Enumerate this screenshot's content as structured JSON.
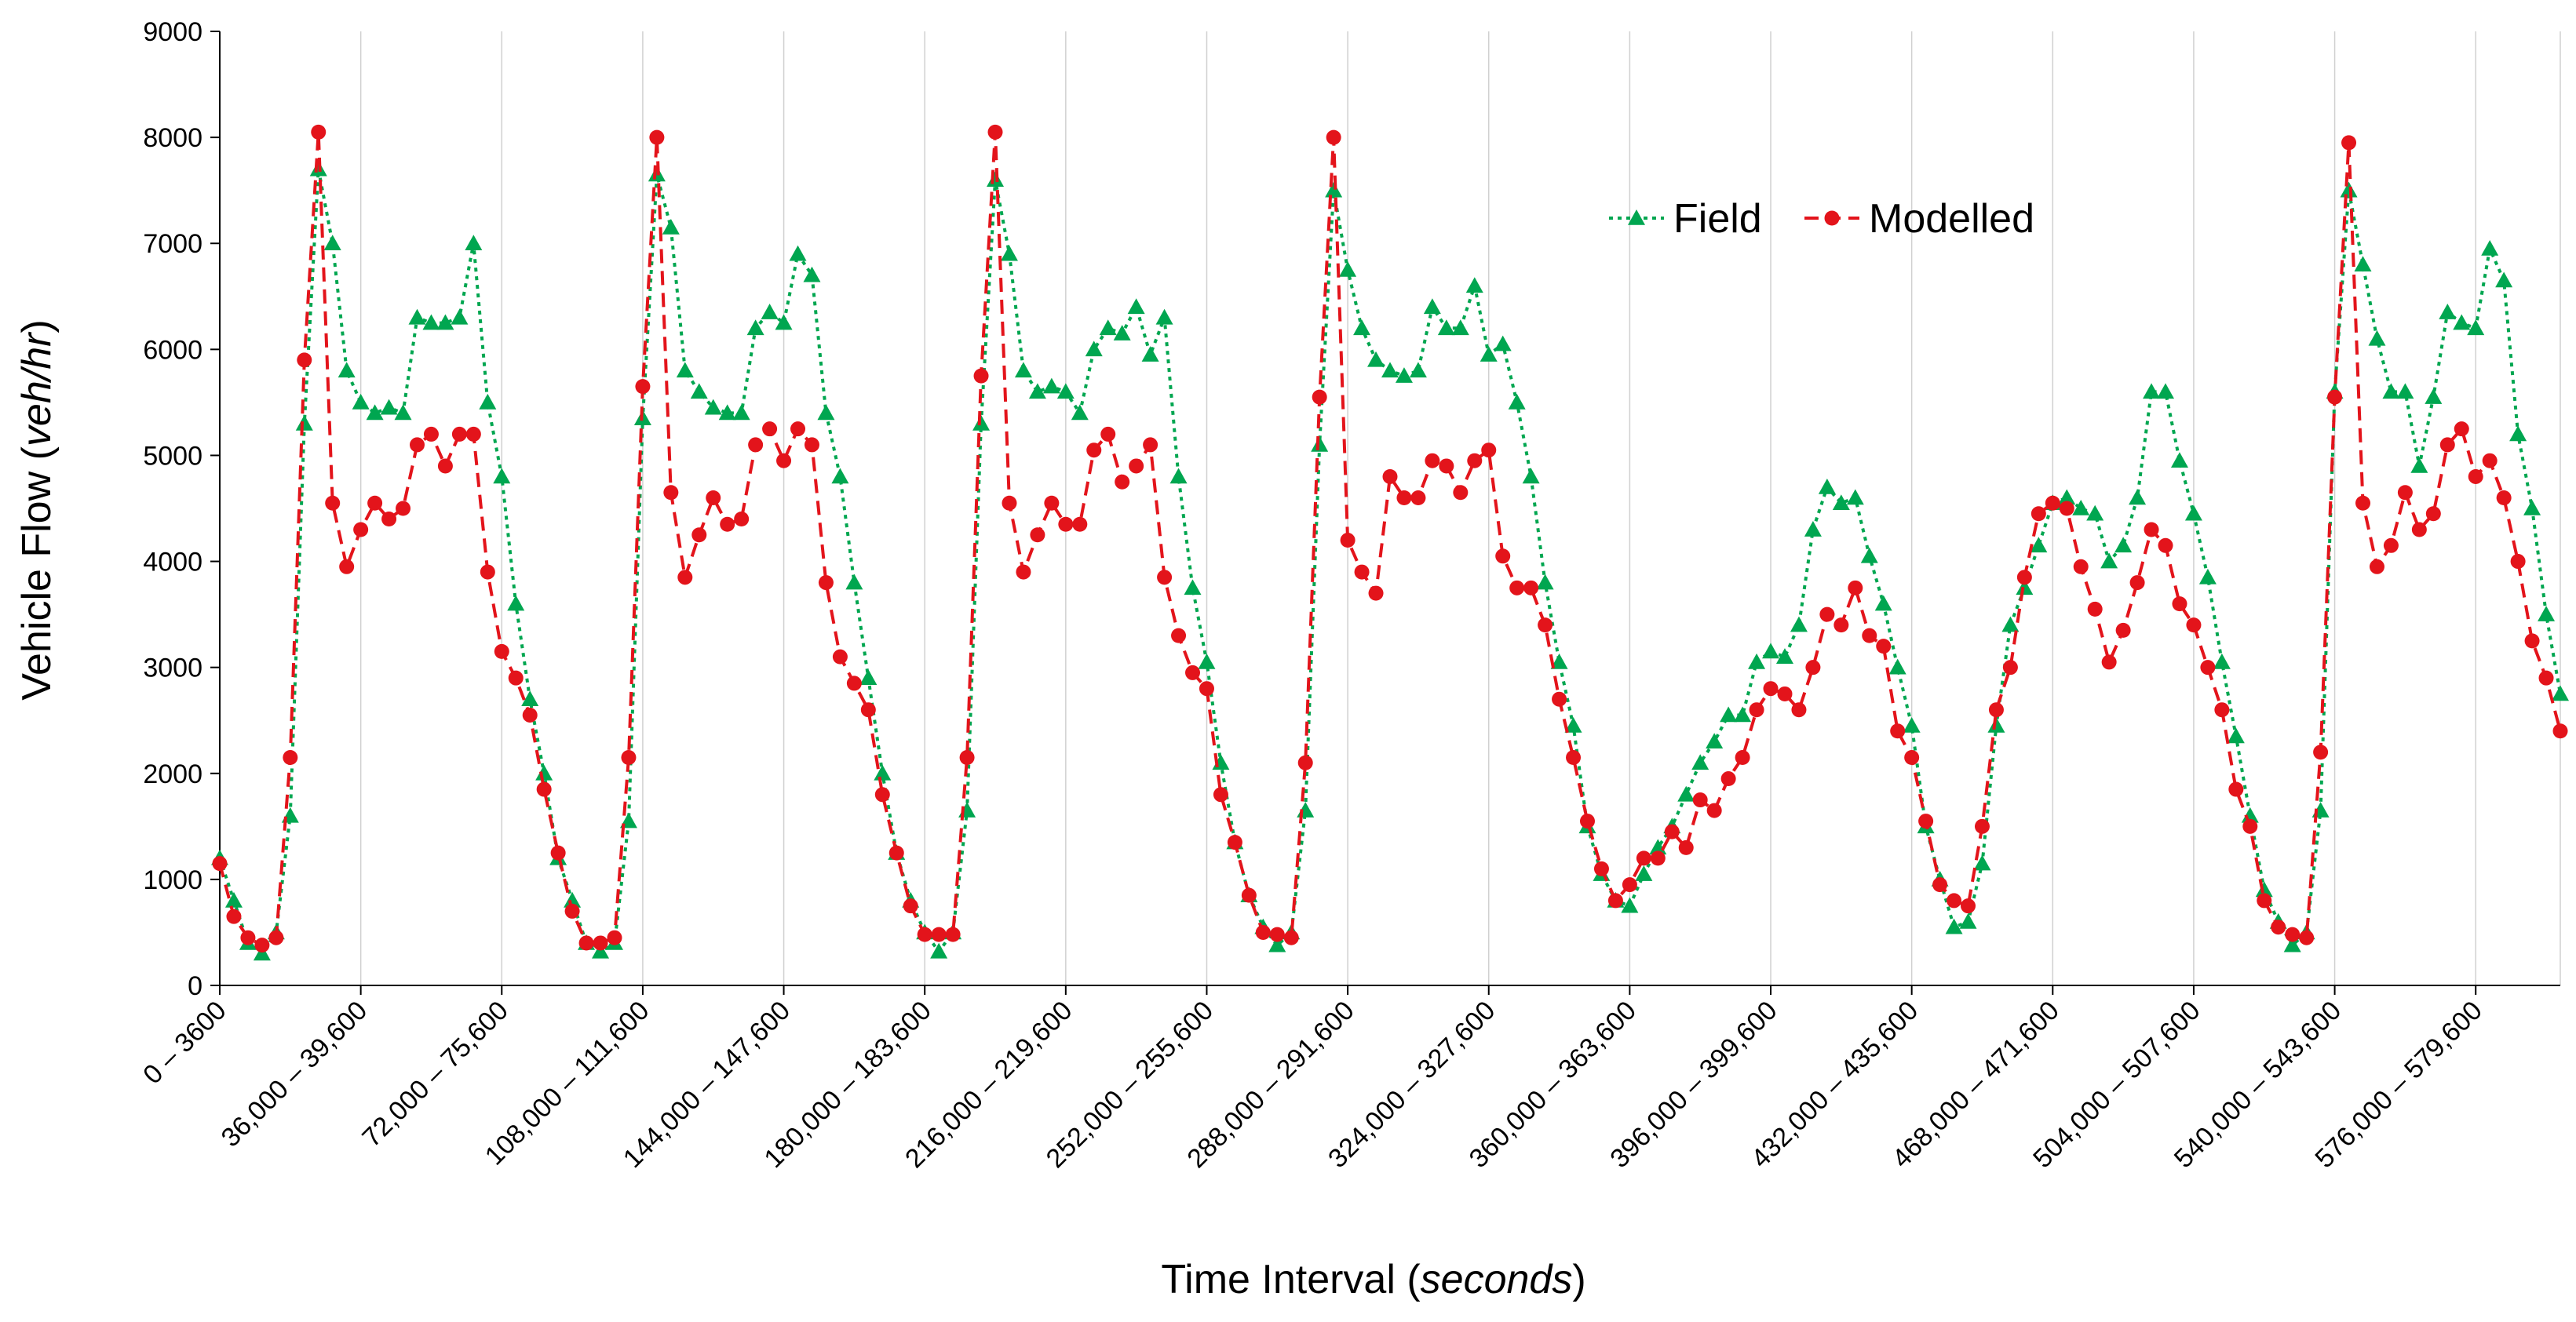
{
  "chart_data": {
    "type": "line",
    "title": "",
    "xlabel": "Time Interval",
    "xlabel_unit": "seconds",
    "ylabel": "Vehicle Flow",
    "ylabel_unit": "veh/hr",
    "ylim": [
      0,
      9000
    ],
    "y_ticks": [
      "0",
      "1000",
      "2000",
      "3000",
      "4000",
      "5000",
      "6000",
      "7000",
      "8000",
      "9000"
    ],
    "x_tick_labels": [
      "0 – 3600",
      "36,000 – 39,600",
      "72,000 – 75,600",
      "108,000 – 111,600",
      "144,000 – 147,600",
      "180,000 – 183,600",
      "216,000 – 219,600",
      "252,000 – 255,600",
      "288,000 – 291,600",
      "324,000 – 327,600",
      "360,000 – 363,600",
      "396,000 – 399,600",
      "432,000 – 435,600",
      "468,000 – 471,600",
      "504,000 – 507,600",
      "540,000 – 543,600",
      "576,000 – 579,600"
    ],
    "grid": "vertical",
    "legend": "top-right",
    "series": [
      {
        "name": "Field",
        "color": "#00a650",
        "marker": "triangle",
        "line": "dotted",
        "values": [
          1200,
          800,
          400,
          300,
          500,
          1600,
          5300,
          7700,
          7000,
          5800,
          5500,
          5400,
          5450,
          5400,
          6300,
          6250,
          6250,
          6300,
          7000,
          5500,
          4800,
          3600,
          2700,
          2000,
          1200,
          800,
          400,
          320,
          400,
          1550,
          5350,
          7650,
          7150,
          5800,
          5600,
          5450,
          5400,
          5400,
          6200,
          6350,
          6250,
          6900,
          6700,
          5400,
          4800,
          3800,
          2900,
          2000,
          1250,
          800,
          500,
          320,
          500,
          1650,
          5300,
          7600,
          6900,
          5800,
          5600,
          5650,
          5600,
          5400,
          6000,
          6200,
          6150,
          6400,
          5950,
          6300,
          4800,
          3750,
          3050,
          2100,
          1350,
          850,
          550,
          380,
          500,
          1650,
          5100,
          7500,
          6750,
          6200,
          5900,
          5800,
          5750,
          5800,
          6400,
          6200,
          6200,
          6600,
          5950,
          6050,
          5500,
          4800,
          3800,
          3050,
          2450,
          1500,
          1050,
          800,
          750,
          1050,
          1300,
          1500,
          1800,
          2100,
          2300,
          2550,
          2550,
          3050,
          3150,
          3100,
          3400,
          4300,
          4700,
          4550,
          4600,
          4050,
          3600,
          3000,
          2450,
          1500,
          1000,
          550,
          600,
          1150,
          2450,
          3400,
          3750,
          4150,
          4550,
          4600,
          4500,
          4450,
          4000,
          4150,
          4600,
          5600,
          5600,
          4950,
          4450,
          3850,
          3050,
          2350,
          1600,
          900,
          600,
          380,
          500,
          1650,
          5600,
          7500,
          6800,
          6100,
          5600,
          5600,
          4900,
          5550,
          6350,
          6250,
          6200,
          6950,
          6650,
          5200,
          4500,
          3500,
          2750
        ]
      },
      {
        "name": "Modelled",
        "color": "#e3141b",
        "marker": "circle",
        "line": "dashed",
        "values": [
          1150,
          650,
          450,
          380,
          450,
          2150,
          5900,
          8050,
          4550,
          3950,
          4300,
          4550,
          4400,
          4500,
          5100,
          5200,
          4900,
          5200,
          5200,
          3900,
          3150,
          2900,
          2550,
          1850,
          1250,
          700,
          400,
          400,
          450,
          2150,
          5650,
          8000,
          4650,
          3850,
          4250,
          4600,
          4350,
          4400,
          5100,
          5250,
          4950,
          5250,
          5100,
          3800,
          3100,
          2850,
          2600,
          1800,
          1250,
          750,
          480,
          480,
          480,
          2150,
          5750,
          8050,
          4550,
          3900,
          4250,
          4550,
          4350,
          4350,
          5050,
          5200,
          4750,
          4900,
          5100,
          3850,
          3300,
          2950,
          2800,
          1800,
          1350,
          850,
          500,
          480,
          450,
          2100,
          5550,
          8000,
          4200,
          3900,
          3700,
          4800,
          4600,
          4600,
          4950,
          4900,
          4650,
          4950,
          5050,
          4050,
          3750,
          3750,
          3400,
          2700,
          2150,
          1550,
          1100,
          800,
          950,
          1200,
          1200,
          1450,
          1300,
          1750,
          1650,
          1950,
          2150,
          2600,
          2800,
          2750,
          2600,
          3000,
          3500,
          3400,
          3750,
          3300,
          3200,
          2400,
          2150,
          1550,
          950,
          800,
          750,
          1500,
          2600,
          3000,
          3850,
          4450,
          4550,
          4500,
          3950,
          3550,
          3050,
          3350,
          3800,
          4300,
          4150,
          3600,
          3400,
          3000,
          2600,
          1850,
          1500,
          800,
          550,
          480,
          450,
          2200,
          5550,
          7950,
          4550,
          3950,
          4150,
          4650,
          4300,
          4450,
          5100,
          5250,
          4800,
          4950,
          4600,
          4000,
          3250,
          2900,
          2400
        ]
      }
    ]
  }
}
